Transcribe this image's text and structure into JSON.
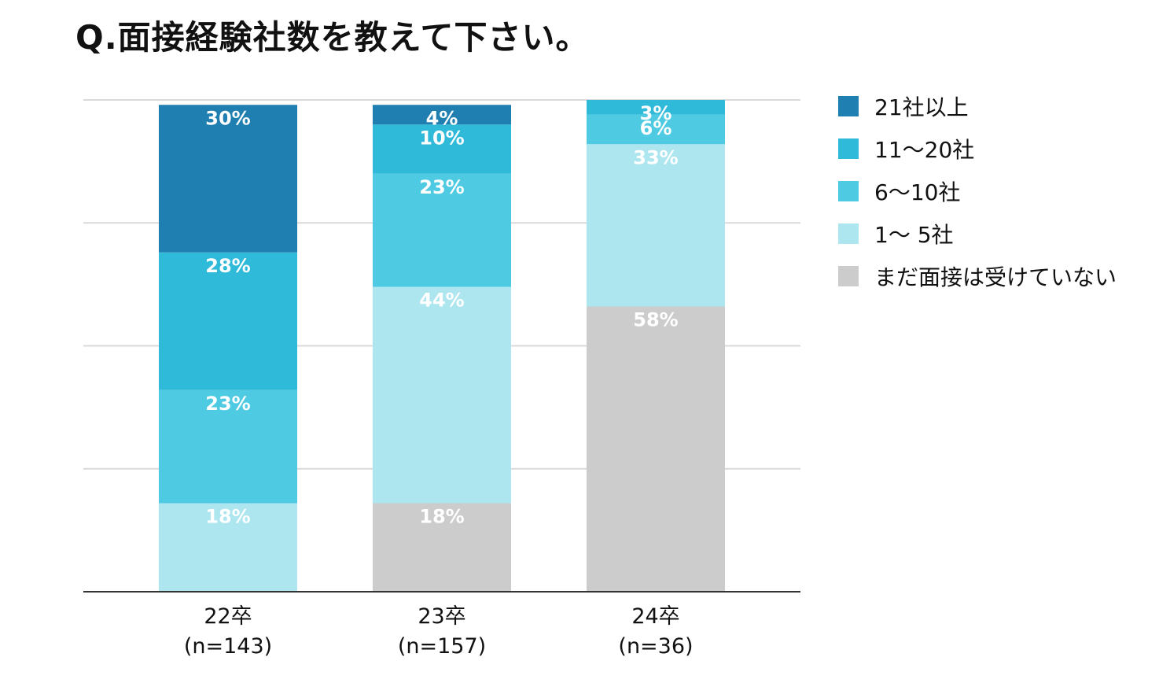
{
  "title": "Q.面接経験社数を教えて下さい。",
  "chart_data": {
    "type": "bar",
    "stacked": true,
    "categories": [
      "22卒",
      "23卒",
      "24卒"
    ],
    "category_sublabels": [
      "(n=143)",
      "(n=157)",
      "(n=36)"
    ],
    "ylim": [
      0,
      100
    ],
    "grid": true,
    "legend_position": "right",
    "series": [
      {
        "name": "まだ面接は受けていない",
        "color": "#cccccc",
        "values": [
          0,
          18,
          58
        ],
        "labels": [
          "",
          "18%",
          "58%"
        ]
      },
      {
        "name": "1～ 5社",
        "color": "#aee6f0",
        "values": [
          18,
          44,
          33
        ],
        "labels": [
          "18%",
          "44%",
          "33%"
        ]
      },
      {
        "name": "6～10社",
        "color": "#4ecbe2",
        "values": [
          23,
          23,
          6
        ],
        "labels": [
          "23%",
          "23%",
          "6%"
        ]
      },
      {
        "name": "11～20社",
        "color": "#2ebad8",
        "values": [
          28,
          10,
          3
        ],
        "labels": [
          "28%",
          "10%",
          "3%"
        ]
      },
      {
        "name": "21社以上",
        "color": "#1f7fb0",
        "values": [
          30,
          4,
          0
        ],
        "labels": [
          "30%",
          "4%",
          ""
        ]
      }
    ],
    "legend_order": [
      "21社以上",
      "11～20社",
      "6～10社",
      "1～ 5社",
      "まだ面接は受けていない"
    ]
  }
}
